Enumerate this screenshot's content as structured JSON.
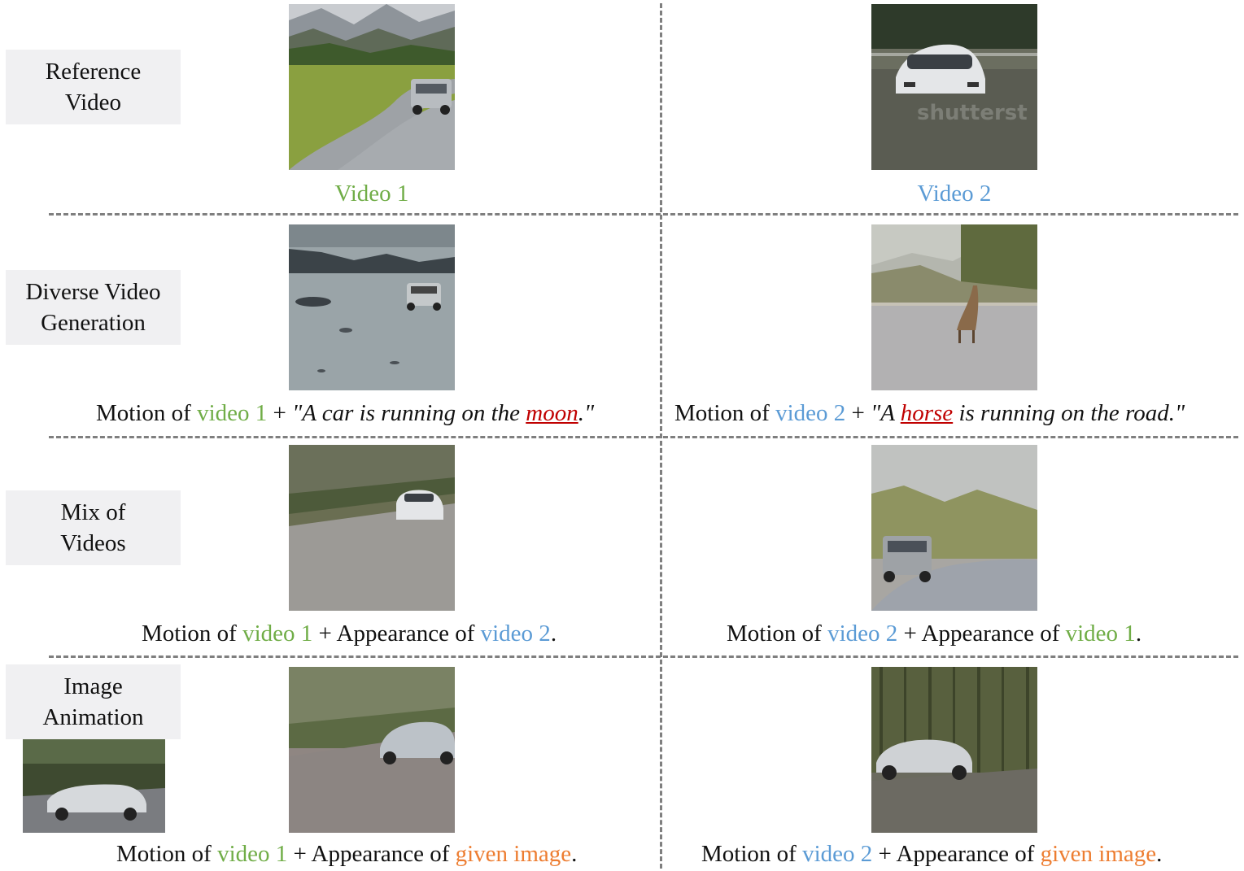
{
  "rows": [
    {
      "label_lines": [
        "Reference",
        "Video"
      ]
    },
    {
      "label_lines": [
        "Diverse Video",
        "Generation"
      ]
    },
    {
      "label_lines": [
        "Mix of",
        "Videos"
      ]
    },
    {
      "label_lines": [
        "Image",
        "Animation"
      ]
    }
  ],
  "reference": {
    "left_caption": "Video 1",
    "right_caption": "Video 2",
    "watermark": "shutterst"
  },
  "diverse": {
    "left": {
      "motion_of": "Motion of ",
      "video_ref": "video 1",
      "plus": " + ",
      "prompt_pre": "\"A car is running on the ",
      "highlight": "moon",
      "prompt_post": ".\""
    },
    "right": {
      "motion_of": "Motion of ",
      "video_ref": "video 2",
      "plus": " + ",
      "prompt_pre": "\"A ",
      "highlight": "horse",
      "prompt_post": " is running on the road.\""
    }
  },
  "mix": {
    "left": {
      "motion_of": "Motion of ",
      "video_ref": "video 1",
      "appearance_of": " + Appearance of ",
      "appearance_ref": "video 2",
      "end": "."
    },
    "right": {
      "motion_of": "Motion of ",
      "video_ref": "video 2",
      "appearance_of": " + Appearance of ",
      "appearance_ref": "video 1",
      "end": "."
    }
  },
  "animation": {
    "left": {
      "motion_of": "Motion of ",
      "video_ref": "video 1",
      "appearance_of": " + Appearance of ",
      "appearance_ref": "given image",
      "end": "."
    },
    "right": {
      "motion_of": "Motion of ",
      "video_ref": "video 2",
      "appearance_of": " + Appearance of ",
      "appearance_ref": "given image",
      "end": "."
    }
  },
  "colors": {
    "video1": "#70ad47",
    "video2": "#5b9bd5",
    "given_image": "#ed7d31",
    "highlight": "#c00000",
    "label_bg": "#f0f0f2",
    "divider": "#7f7f7f"
  }
}
